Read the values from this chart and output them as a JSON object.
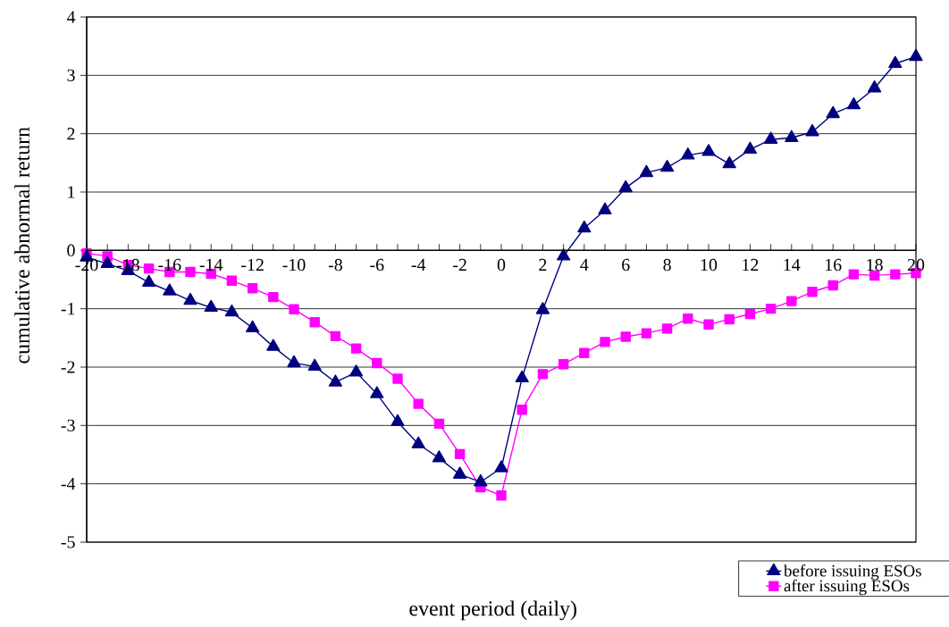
{
  "chart_data": {
    "type": "line",
    "xlabel": "event period (daily)",
    "ylabel": "cumulative abnormal return",
    "x": [
      -20,
      -19,
      -18,
      -17,
      -16,
      -15,
      -14,
      -13,
      -12,
      -11,
      -10,
      -9,
      -8,
      -7,
      -6,
      -5,
      -4,
      -3,
      -2,
      -1,
      0,
      1,
      2,
      3,
      4,
      5,
      6,
      7,
      8,
      9,
      10,
      11,
      12,
      13,
      14,
      15,
      16,
      17,
      18,
      19,
      20
    ],
    "series": [
      {
        "name": "before issuing ESOs",
        "color": "#000080",
        "marker": "triangle",
        "values": [
          -0.12,
          -0.23,
          -0.35,
          -0.55,
          -0.7,
          -0.86,
          -0.98,
          -1.06,
          -1.33,
          -1.65,
          -1.93,
          -1.99,
          -2.26,
          -2.09,
          -2.46,
          -2.94,
          -3.32,
          -3.56,
          -3.84,
          -3.97,
          -3.73,
          -2.19,
          -1.02,
          -0.1,
          0.38,
          0.69,
          1.07,
          1.33,
          1.42,
          1.63,
          1.69,
          1.48,
          1.73,
          1.9,
          1.93,
          2.03,
          2.34,
          2.49,
          2.78,
          3.2,
          3.32
        ]
      },
      {
        "name": "after issuing ESOs",
        "color": "#ff00ff",
        "marker": "square",
        "values": [
          -0.05,
          -0.1,
          -0.25,
          -0.31,
          -0.37,
          -0.37,
          -0.4,
          -0.52,
          -0.65,
          -0.8,
          -1.01,
          -1.23,
          -1.47,
          -1.68,
          -1.93,
          -2.2,
          -2.63,
          -2.97,
          -3.49,
          -4.06,
          -4.2,
          -2.73,
          -2.12,
          -1.95,
          -1.76,
          -1.57,
          -1.48,
          -1.42,
          -1.34,
          -1.17,
          -1.27,
          -1.18,
          -1.09,
          -1.0,
          -0.87,
          -0.71,
          -0.6,
          -0.41,
          -0.43,
          -0.41,
          -0.39
        ]
      }
    ],
    "xlim": [
      -20,
      20
    ],
    "ylim": [
      -5,
      4
    ],
    "xticks": [
      -20,
      {
        "value": -19,
        "label": null
      },
      -18,
      {
        "value": -17,
        "label": null
      },
      -16,
      {
        "value": -15,
        "label": null
      },
      -14,
      {
        "value": -13,
        "label": null
      },
      -12,
      {
        "value": -11,
        "label": null
      },
      -10,
      {
        "value": -9,
        "label": null
      },
      -8,
      {
        "value": -7,
        "label": null
      },
      -6,
      {
        "value": -5,
        "label": null
      },
      -4,
      {
        "value": -3,
        "label": null
      },
      -2,
      {
        "value": -1,
        "label": null
      },
      0,
      {
        "value": 1,
        "label": null
      },
      2,
      {
        "value": 3,
        "label": null
      },
      4,
      {
        "value": 5,
        "label": null
      },
      6,
      {
        "value": 7,
        "label": null
      },
      8,
      {
        "value": 9,
        "label": null
      },
      10,
      {
        "value": 11,
        "label": null
      },
      12,
      {
        "value": 13,
        "label": null
      },
      14,
      {
        "value": 15,
        "label": null
      },
      16,
      {
        "value": 17,
        "label": null
      },
      18,
      {
        "value": 19,
        "label": null
      },
      20
    ],
    "yticks": [
      -5,
      -4,
      -3,
      -2,
      -1,
      0,
      1,
      2,
      3,
      4
    ],
    "grid": "y",
    "legend": "bottom right",
    "line_style": "solid"
  }
}
